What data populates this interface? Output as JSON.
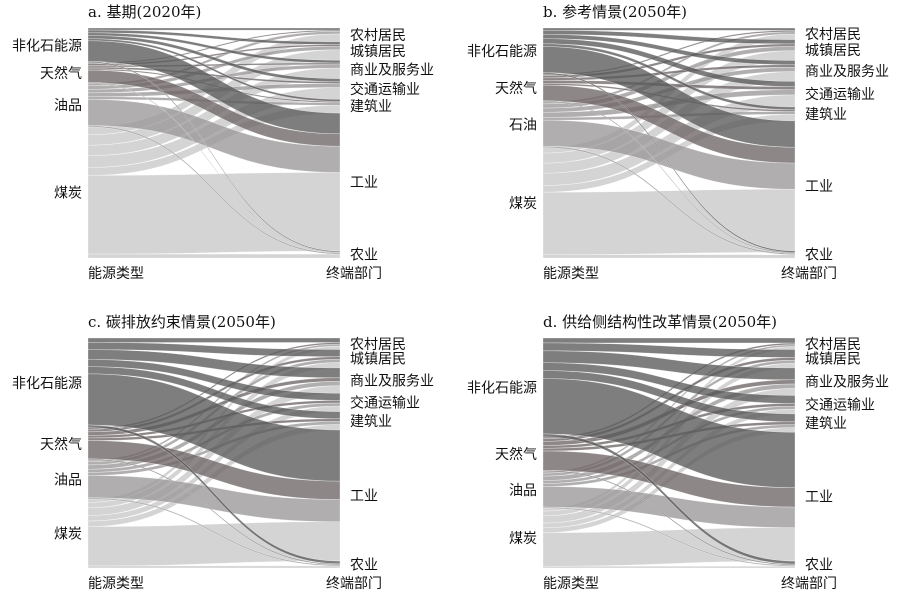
{
  "chart_data": [
    {
      "type": "sankey",
      "title": "a. 基期(2020年)",
      "left_axis_label": "能源类型",
      "right_axis_label": "终端部门",
      "sources": [
        {
          "name": "非化石能源",
          "value": 15
        },
        {
          "name": "天然气",
          "value": 9
        },
        {
          "name": "油品",
          "value": 19
        },
        {
          "name": "煤炭",
          "value": 57
        }
      ],
      "targets": [
        {
          "name": "农村居民",
          "value": 6
        },
        {
          "name": "城镇居民",
          "value": 8
        },
        {
          "name": "商业及服务业",
          "value": 8
        },
        {
          "name": "交通运输业",
          "value": 9
        },
        {
          "name": "建筑业",
          "value": 6
        },
        {
          "name": "工业",
          "value": 60
        },
        {
          "name": "农业",
          "value": 3
        }
      ]
    },
    {
      "type": "sankey",
      "title": "b. 参考情景(2050年)",
      "left_axis_label": "能源类型",
      "right_axis_label": "终端部门",
      "sources": [
        {
          "name": "非化石能源",
          "value": 20
        },
        {
          "name": "天然气",
          "value": 12
        },
        {
          "name": "石油",
          "value": 20
        },
        {
          "name": "煤炭",
          "value": 48
        }
      ],
      "targets": [
        {
          "name": "农村居民",
          "value": 5
        },
        {
          "name": "城镇居民",
          "value": 9
        },
        {
          "name": "商业及服务业",
          "value": 9
        },
        {
          "name": "交通运输业",
          "value": 11
        },
        {
          "name": "建筑业",
          "value": 6
        },
        {
          "name": "工业",
          "value": 56
        },
        {
          "name": "农业",
          "value": 3
        }
      ]
    },
    {
      "type": "sankey",
      "title": "c. 碳排放约束情景(2050年)",
      "left_axis_label": "能源类型",
      "right_axis_label": "终端部门",
      "sources": [
        {
          "name": "非化石能源",
          "value": 39
        },
        {
          "name": "天然气",
          "value": 14
        },
        {
          "name": "油品",
          "value": 17
        },
        {
          "name": "煤炭",
          "value": 30
        }
      ],
      "targets": [
        {
          "name": "农村居民",
          "value": 5
        },
        {
          "name": "城镇居民",
          "value": 8
        },
        {
          "name": "商业及服务业",
          "value": 11
        },
        {
          "name": "交通运输业",
          "value": 8
        },
        {
          "name": "建筑业",
          "value": 8
        },
        {
          "name": "工业",
          "value": 57
        },
        {
          "name": "农业",
          "value": 3
        }
      ]
    },
    {
      "type": "sankey",
      "title": "d. 供给侧结构性改革情景(2050年)",
      "left_axis_label": "能源类型",
      "right_axis_label": "终端部门",
      "sources": [
        {
          "name": "非化石能源",
          "value": 43
        },
        {
          "name": "天然气",
          "value": 15
        },
        {
          "name": "油品",
          "value": 16
        },
        {
          "name": "煤炭",
          "value": 26
        }
      ],
      "targets": [
        {
          "name": "农村居民",
          "value": 5
        },
        {
          "name": "城镇居民",
          "value": 8
        },
        {
          "name": "商业及服务业",
          "value": 12
        },
        {
          "name": "交通运输业",
          "value": 8
        },
        {
          "name": "建筑业",
          "value": 8
        },
        {
          "name": "工业",
          "value": 56
        },
        {
          "name": "农业",
          "value": 3
        }
      ]
    }
  ],
  "colors": {
    "非化石能源": "#5a5a5a",
    "天然气": "#6e6565",
    "油品": "#9a9797",
    "石油": "#9a9797",
    "煤炭": "#d2d2d2"
  }
}
